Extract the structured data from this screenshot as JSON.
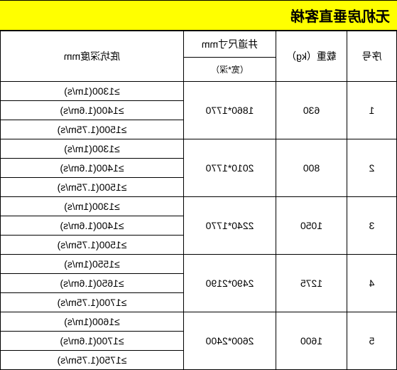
{
  "title": "无机房垂直客梯",
  "headers": {
    "seq": "序号",
    "load": "载重（kg）",
    "shaft_main": "井道尺寸mm",
    "shaft_sub": "（宽*深）",
    "pit": "底坑深度mm"
  },
  "rows": [
    {
      "seq": "1",
      "load": "630",
      "shaft": "1860*1770",
      "pits": [
        "≥1300(1m/s)",
        "≥1400(1.6m/s)",
        "≥1500(1.75m/s)"
      ]
    },
    {
      "seq": "2",
      "load": "800",
      "shaft": "2010*1770",
      "pits": [
        "≥1300(1m/s)",
        "≥1400(1.6m/s)",
        "≥1500(1.75m/s)"
      ]
    },
    {
      "seq": "3",
      "load": "1050",
      "shaft": "2240*1770",
      "pits": [
        "≥1300(1m/s)",
        "≥1400(1.6m/s)",
        "≥1500(1.75m/s)"
      ]
    },
    {
      "seq": "4",
      "load": "1275",
      "shaft": "2490*2190",
      "pits": [
        "≥1550(1m/s)",
        "≥1650(1.6m/s)",
        "≥1700(1.75m/s)"
      ]
    },
    {
      "seq": "5",
      "load": "1600",
      "shaft": "2600*2400",
      "pits": [
        "≥1600(1m/s)",
        "≥1700(1.6m/s)",
        "≥1750(1.75m/s)"
      ]
    }
  ],
  "colors": {
    "title_bg": "#ffff00",
    "border": "#000000",
    "background": "#ffffff"
  }
}
